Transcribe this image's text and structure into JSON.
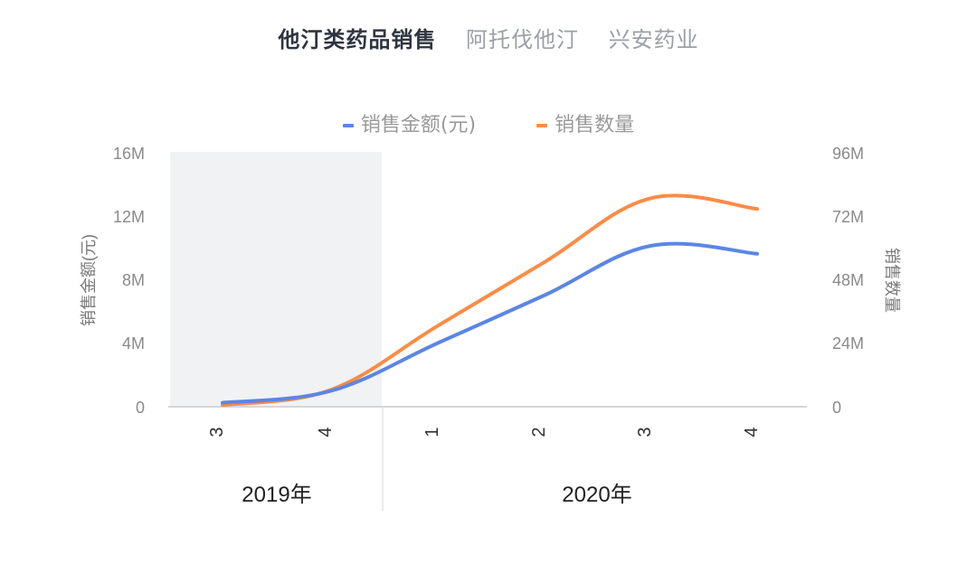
{
  "tabs": [
    {
      "label": "他汀类药品销售",
      "active": true
    },
    {
      "label": "阿托伐他汀",
      "active": false
    },
    {
      "label": "兴安药业",
      "active": false
    }
  ],
  "legend": [
    {
      "label": "销售金额(元)",
      "color": "#5b86e5"
    },
    {
      "label": "销售数量",
      "color": "#fb8c46"
    }
  ],
  "colors": {
    "amount": "#5b86e5",
    "quantity": "#fb8c46",
    "highlight_band": "#f1f2f4",
    "axis_line": "#d6d6d6",
    "tick_text": "#8a8a8a"
  },
  "chart_data": {
    "type": "line",
    "title": "他汀类药品销售",
    "categories": [
      "2019年 3",
      "2019年 4",
      "2020年 1",
      "2020年 2",
      "2020年 3",
      "2020年 4"
    ],
    "x_groups": [
      {
        "label": "2019年",
        "quarters": [
          "3",
          "4"
        ]
      },
      {
        "label": "2020年",
        "quarters": [
          "1",
          "2",
          "3",
          "4"
        ]
      }
    ],
    "series": [
      {
        "name": "销售金额(元)",
        "axis": "left",
        "color": "#5b86e5",
        "values": [
          250000,
          1000000,
          4000000,
          7000000,
          10100000,
          9600000
        ]
      },
      {
        "name": "销售数量",
        "axis": "right",
        "color": "#fb8c46",
        "values": [
          600000,
          6400000,
          30500000,
          54500000,
          78500000,
          74500000
        ]
      }
    ],
    "ylabel_left": "销售金额(元)",
    "ylabel_right": "销售数量",
    "ylim_left": [
      0,
      16000000
    ],
    "ylim_right": [
      0,
      96000000
    ],
    "yticks_left": [
      "0",
      "4M",
      "8M",
      "12M",
      "16M"
    ],
    "yticks_right": [
      "0",
      "24M",
      "48M",
      "72M",
      "96M"
    ],
    "highlighted_region": "2019年",
    "grid": false,
    "legend_position": "top"
  }
}
